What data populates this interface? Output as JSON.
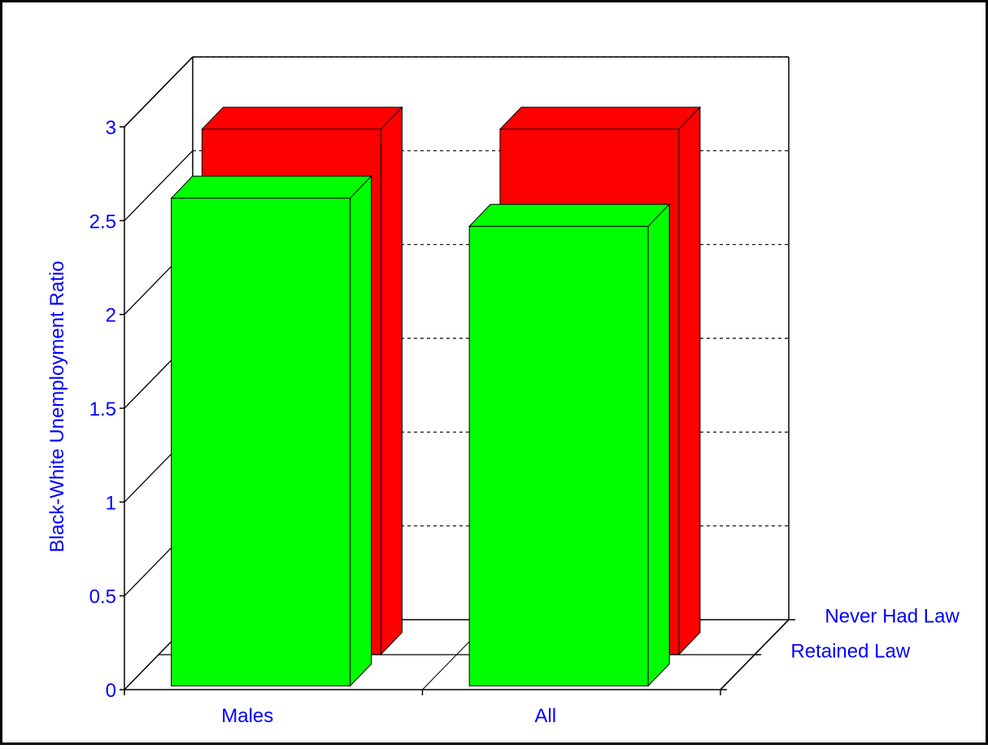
{
  "chart_data": {
    "type": "bar",
    "categories": [
      "Males",
      "All"
    ],
    "series": [
      {
        "name": "Never Had Law",
        "values": [
          2.8,
          2.8
        ],
        "color": "#ff0000"
      },
      {
        "name": "Retained Law",
        "values": [
          2.6,
          2.45
        ],
        "color": "#00ff00"
      }
    ],
    "ylabel": "Black-White Unemployment Ratio",
    "xlabel": "",
    "ylim": [
      0,
      3
    ],
    "yticks": [
      "0",
      "0.5",
      "1",
      "1.5",
      "2",
      "2.5",
      "3"
    ],
    "grid": true,
    "three_d": true,
    "axis_text_color": "#0000ff"
  }
}
